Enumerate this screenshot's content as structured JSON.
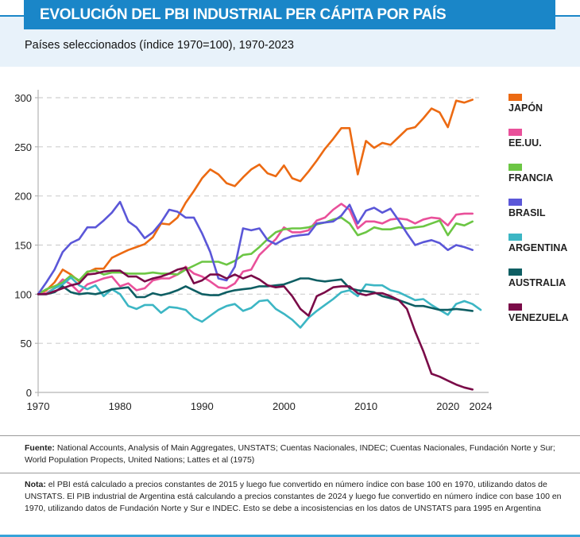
{
  "header": {
    "title": "EVOLUCIÓN DEL PBI INDUSTRIAL PER CÁPITA POR PAÍS",
    "subtitle": "Países seleccionados (índice 1970=100), 1970-2023",
    "accent_color": "#1a86c8"
  },
  "chart_data": {
    "type": "line",
    "title": "EVOLUCIÓN DEL PBI INDUSTRIAL PER CÁPITA POR PAÍS",
    "subtitle": "Países seleccionados (índice 1970=100), 1970-2023",
    "xlabel": "",
    "ylabel": "",
    "xlim": [
      1970,
      2024
    ],
    "ylim": [
      0,
      300
    ],
    "x_ticks": [
      1970,
      1980,
      1990,
      2000,
      2010,
      2020,
      2024
    ],
    "y_ticks": [
      0,
      50,
      100,
      150,
      200,
      250,
      300
    ],
    "grid": "horizontal dashed",
    "legend": "right",
    "series": [
      {
        "name": "JAPÓN",
        "color": "#ec6a12",
        "start": 1970,
        "values": [
          100,
          104,
          112,
          125,
          120,
          113,
          122,
          126,
          126,
          137,
          141,
          145,
          148,
          151,
          158,
          172,
          171,
          178,
          193,
          205,
          218,
          227,
          222,
          213,
          210,
          219,
          227,
          232,
          223,
          220,
          231,
          218,
          215,
          225,
          236,
          248,
          258,
          269,
          269,
          222,
          256,
          249,
          254,
          252,
          260,
          268,
          270,
          279,
          289,
          285,
          270,
          297,
          295,
          298
        ]
      },
      {
        "name": "EE.UU.",
        "color": "#e9509a",
        "start": 1970,
        "values": [
          100,
          101,
          106,
          115,
          110,
          102,
          110,
          113,
          116,
          118,
          108,
          111,
          104,
          106,
          114,
          116,
          116,
          120,
          128,
          121,
          118,
          113,
          107,
          106,
          111,
          123,
          125,
          140,
          148,
          156,
          168,
          163,
          163,
          165,
          175,
          178,
          186,
          192,
          186,
          167,
          174,
          174,
          172,
          176,
          177,
          176,
          172,
          176,
          178,
          177,
          170,
          181,
          182,
          182
        ]
      },
      {
        "name": "FRANCIA",
        "color": "#6cc644",
        "start": 1970,
        "values": [
          100,
          105,
          108,
          112,
          119,
          114,
          123,
          124,
          120,
          122,
          122,
          121,
          121,
          121,
          122,
          121,
          121,
          120,
          125,
          129,
          133,
          133,
          133,
          130,
          134,
          140,
          141,
          148,
          156,
          163,
          166,
          167,
          167,
          168,
          171,
          173,
          176,
          178,
          172,
          160,
          163,
          168,
          166,
          166,
          168,
          167,
          168,
          169,
          172,
          175,
          160,
          172,
          170,
          174
        ]
      },
      {
        "name": "BRASIL",
        "color": "#5b57d8",
        "start": 1970,
        "values": [
          100,
          112,
          125,
          143,
          152,
          156,
          168,
          168,
          175,
          183,
          194,
          174,
          168,
          157,
          163,
          173,
          186,
          184,
          178,
          178,
          162,
          143,
          116,
          114,
          128,
          167,
          165,
          167,
          155,
          151,
          156,
          159,
          160,
          161,
          172,
          173,
          174,
          180,
          191,
          172,
          185,
          188,
          183,
          187,
          175,
          162,
          150,
          153,
          155,
          152,
          145,
          150,
          148,
          145
        ]
      },
      {
        "name": "ARGENTINA",
        "color": "#3cb6c4",
        "start": 1970,
        "values": [
          100,
          100,
          106,
          110,
          117,
          109,
          105,
          109,
          98,
          105,
          100,
          88,
          85,
          89,
          89,
          81,
          87,
          86,
          84,
          76,
          72,
          78,
          84,
          88,
          90,
          83,
          86,
          93,
          94,
          85,
          80,
          74,
          66,
          76,
          83,
          89,
          95,
          102,
          104,
          98,
          110,
          109,
          109,
          104,
          102,
          98,
          94,
          95,
          89,
          84,
          79,
          90,
          93,
          90,
          84
        ]
      },
      {
        "name": "AUSTRALIA",
        "color": "#0e5e63",
        "start": 1970,
        "values": [
          100,
          100,
          102,
          108,
          102,
          100,
          101,
          100,
          102,
          105,
          106,
          107,
          97,
          97,
          101,
          99,
          101,
          104,
          108,
          104,
          100,
          99,
          99,
          102,
          104,
          105,
          106,
          108,
          108,
          109,
          110,
          113,
          116,
          116,
          114,
          113,
          114,
          115,
          106,
          104,
          103,
          102,
          98,
          96,
          94,
          91,
          88,
          88,
          86,
          84,
          84,
          85,
          84,
          83
        ]
      },
      {
        "name": "VENEZUELA",
        "color": "#7a0b48",
        "start": 1970,
        "values": [
          100,
          100,
          103,
          106,
          109,
          111,
          120,
          121,
          123,
          124,
          124,
          118,
          118,
          113,
          116,
          118,
          121,
          125,
          127,
          111,
          114,
          120,
          120,
          116,
          120,
          116,
          119,
          115,
          109,
          107,
          108,
          98,
          85,
          78,
          98,
          102,
          107,
          108,
          108,
          101,
          99,
          101,
          101,
          98,
          94,
          85,
          62,
          42,
          19,
          16,
          12,
          8,
          5,
          3
        ]
      }
    ]
  },
  "footer": {
    "source_label": "Fuente:",
    "source_text": " National Accounts, Analysis of Main Aggregates, UNSTATS; Cuentas Nacionales, INDEC; Cuentas Nacionales, Fundación Norte y Sur; World Population Propects, United Nations; Lattes et al (1975)",
    "note_label": "Nota:",
    "note_text": " el PBI está calculado a precios constantes de 2015 y luego fue convertido en número índice con base 100 en 1970, utilizando datos de UNSTATS. El PIB industrial de Argentina está calculando a precios constantes de 2024 y luego fue convertido en número índice con base 100 en 1970, utilizando datos de Fundación Norte y Sur e INDEC. Esto se debe a incosistencias en los datos de UNSTATS para 1995 en Argentina"
  }
}
